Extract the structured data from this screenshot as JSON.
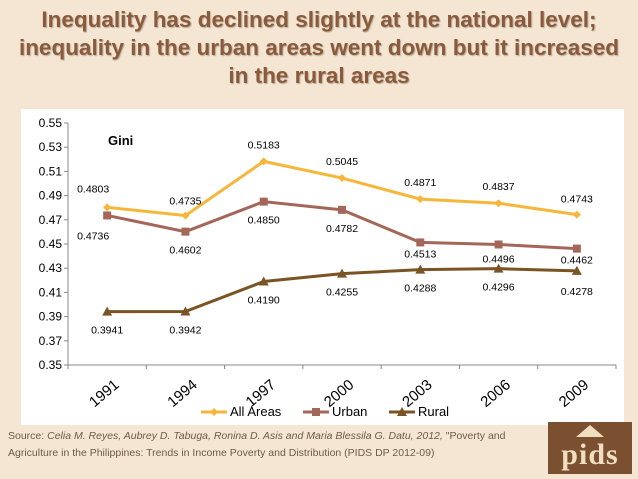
{
  "header": {
    "title": "Inequality has declined slightly at the national level; inequality  in the urban areas went down but it increased in the rural areas"
  },
  "source": {
    "prefix": "Source: ",
    "authors": "Celia M. Reyes, Aubrey D. Tabuga, Ronina D. Asis and Maria Blessila G. Datu, 2012,",
    "rest": " \"Poverty and Agriculture in the Philippines: Trends in Income Poverty and Distribution (PIDS DP 2012-09)"
  },
  "logo": {
    "text": "pids",
    "icon": "pids-logo-icon"
  },
  "colors": {
    "background": "#f4e6d3",
    "all_areas": "#f5b63a",
    "urban": "#a5665a",
    "rural": "#7a5424"
  },
  "chart_data": {
    "type": "line",
    "annotation": "Gini",
    "x": [
      "1991",
      "1994",
      "1997",
      "2000",
      "2003",
      "2006",
      "2009"
    ],
    "ylim": [
      0.35,
      0.55
    ],
    "yticks": [
      "0.35",
      "0.37",
      "0.39",
      "0.41",
      "0.43",
      "0.45",
      "0.47",
      "0.49",
      "0.51",
      "0.53",
      "0.55"
    ],
    "grid": false,
    "legend_position": "bottom",
    "series": [
      {
        "name": "All Areas",
        "marker": "diamond",
        "color": "#f5b63a",
        "values": [
          0.4803,
          0.4735,
          0.5183,
          0.5045,
          0.4871,
          0.4837,
          0.4743
        ],
        "labels": [
          "0.4803",
          "0.4735",
          "0.5183",
          "0.5045",
          "0.4871",
          "0.4837",
          "0.4743"
        ]
      },
      {
        "name": "Urban",
        "marker": "square",
        "color": "#a5665a",
        "values": [
          0.4736,
          0.4602,
          0.485,
          0.4782,
          0.4513,
          0.4496,
          0.4462
        ],
        "labels": [
          "0.4736",
          "0.4602",
          "0.4850",
          "0.4782",
          "0.4513",
          "0.4496",
          "0.4462"
        ]
      },
      {
        "name": "Rural",
        "marker": "triangle",
        "color": "#7a5424",
        "values": [
          0.3941,
          0.3942,
          0.419,
          0.4255,
          0.4288,
          0.4296,
          0.4278
        ],
        "labels": [
          "0.3941",
          "0.3942",
          "0.4190",
          "0.4255",
          "0.4288",
          "0.4296",
          "0.4278"
        ]
      }
    ]
  }
}
